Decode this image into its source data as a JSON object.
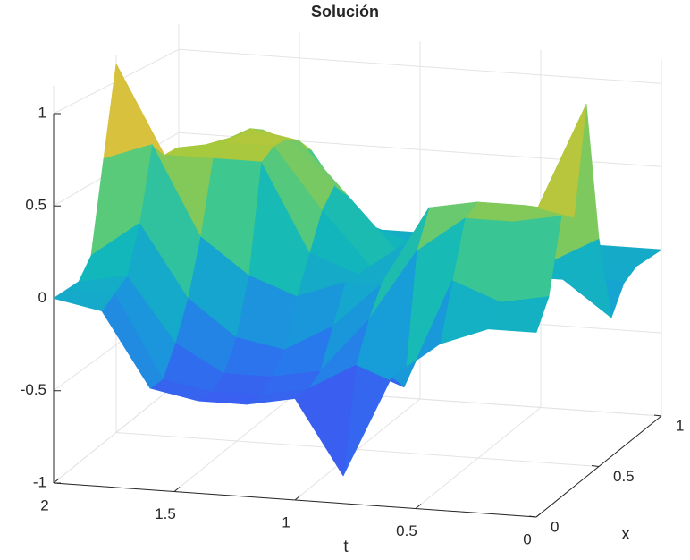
{
  "chart_data": {
    "type": "surface",
    "title": "Solución",
    "xlabel": "t",
    "ylabel": "x",
    "colormap": "parula",
    "grid": true,
    "t": [
      0,
      0.2,
      0.4,
      0.6,
      0.8,
      1.0,
      1.2,
      1.4,
      1.6,
      1.8,
      2.0
    ],
    "x": [
      0,
      0.1,
      0.2,
      0.3,
      0.4,
      0.5,
      0.6,
      0.7,
      0.8,
      0.9,
      1.0
    ],
    "z": [
      [
        0,
        0.15,
        0.55,
        0.5,
        1.1,
        0.3,
        -0.2,
        -0.05,
        0,
        0,
        0
      ],
      [
        0,
        0.1,
        0.5,
        0.55,
        0.5,
        0.15,
        0,
        0,
        0,
        0,
        0
      ],
      [
        -0.1,
        0.2,
        0.5,
        0.55,
        0.45,
        0.05,
        0,
        0,
        0,
        0,
        0
      ],
      [
        -0.3,
        -0.4,
        0.3,
        0.5,
        0.2,
        0,
        0,
        0,
        0,
        0,
        0
      ],
      [
        -0.85,
        -0.3,
        -0.1,
        0.05,
        0,
        0,
        0,
        0,
        0,
        0,
        0
      ],
      [
        -0.45,
        -0.45,
        -0.4,
        -0.2,
        0,
        0,
        0,
        0,
        0,
        0,
        0
      ],
      [
        -0.5,
        -0.5,
        -0.45,
        -0.35,
        -0.1,
        0.1,
        0.3,
        0.4,
        0.3,
        0.1,
        0
      ],
      [
        -0.5,
        -0.5,
        -0.45,
        -0.3,
        0,
        0.6,
        0.65,
        0.65,
        0.6,
        0.5,
        0.3
      ],
      [
        -0.45,
        -0.45,
        -0.3,
        -0.1,
        0.2,
        0.6,
        0.65,
        0.65,
        0.65,
        0.6,
        0.5
      ],
      [
        -0.05,
        0,
        0.05,
        0.3,
        0.7,
        0.6,
        0.6,
        0.55,
        0.5,
        0.4,
        0.2
      ],
      [
        0,
        0,
        0,
        0.1,
        0.6,
        1.1,
        0.4,
        0.05,
        0,
        0,
        0
      ]
    ],
    "tlim": [
      0,
      2
    ],
    "xlim": [
      0,
      1
    ],
    "zlim": [
      -1,
      1.15
    ],
    "tticks": [
      0,
      0.5,
      1,
      1.5,
      2
    ],
    "xticks": [
      0,
      0.5,
      1
    ],
    "zticks": [
      -1,
      -0.5,
      0,
      0.5,
      1
    ]
  }
}
